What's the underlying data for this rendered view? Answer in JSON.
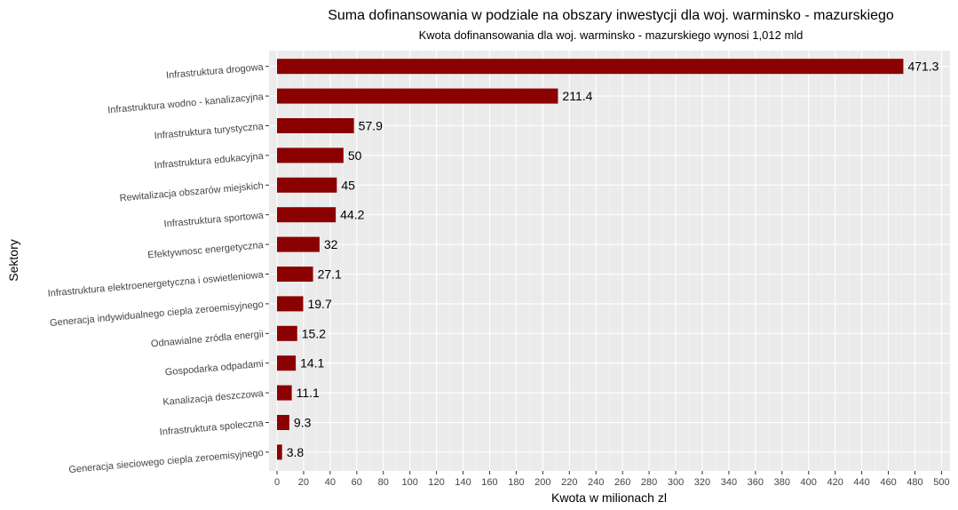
{
  "chart_data": {
    "type": "bar",
    "orientation": "horizontal",
    "title": "Suma dofinansowania w podziale na obszary inwestycji dla woj. warminsko - mazurskiego",
    "subtitle": "Kwota dofinansowania dla woj. warminsko - mazurskiego wynosi 1,012 mld",
    "xlabel": "Kwota w milionach zl",
    "ylabel": "Sektory",
    "xlim": [
      0,
      500
    ],
    "xticks": [
      0,
      20,
      40,
      60,
      80,
      100,
      120,
      140,
      160,
      180,
      200,
      220,
      240,
      260,
      280,
      300,
      320,
      340,
      360,
      380,
      400,
      420,
      440,
      460,
      480,
      500
    ],
    "grid": true,
    "bar_color": "#8B0000",
    "panel_color": "#EBEBEB",
    "categories": [
      "Infrastruktura drogowa",
      "Infrastruktura wodno - kanalizacyjna",
      "Infrastruktura turystyczna",
      "Infrastruktura edukacyjna",
      "Rewitalizacja obszarów miejskich",
      "Infrastruktura sportowa",
      "Efektywnosc energetyczna",
      "Infrastruktura elektroenergetyczna i oswietleniowa",
      "Generacja indywidualnego ciepla zeroemisyjnego",
      "Odnawialne zródla energii",
      "Gospodarka odpadami",
      "Kanalizacja deszczowa",
      "Infrastruktura spoleczna",
      "Generacja sieciowego ciepla zeroemisyjnego"
    ],
    "values": [
      471.3,
      211.4,
      57.9,
      50,
      45,
      44.2,
      32,
      27.1,
      19.7,
      15.2,
      14.1,
      11.1,
      9.3,
      3.8
    ],
    "value_labels": [
      "471.3",
      "211.4",
      "57.9",
      "50",
      "45",
      "44.2",
      "32",
      "27.1",
      "19.7",
      "15.2",
      "14.1",
      "11.1",
      "9.3",
      "3.8"
    ]
  }
}
